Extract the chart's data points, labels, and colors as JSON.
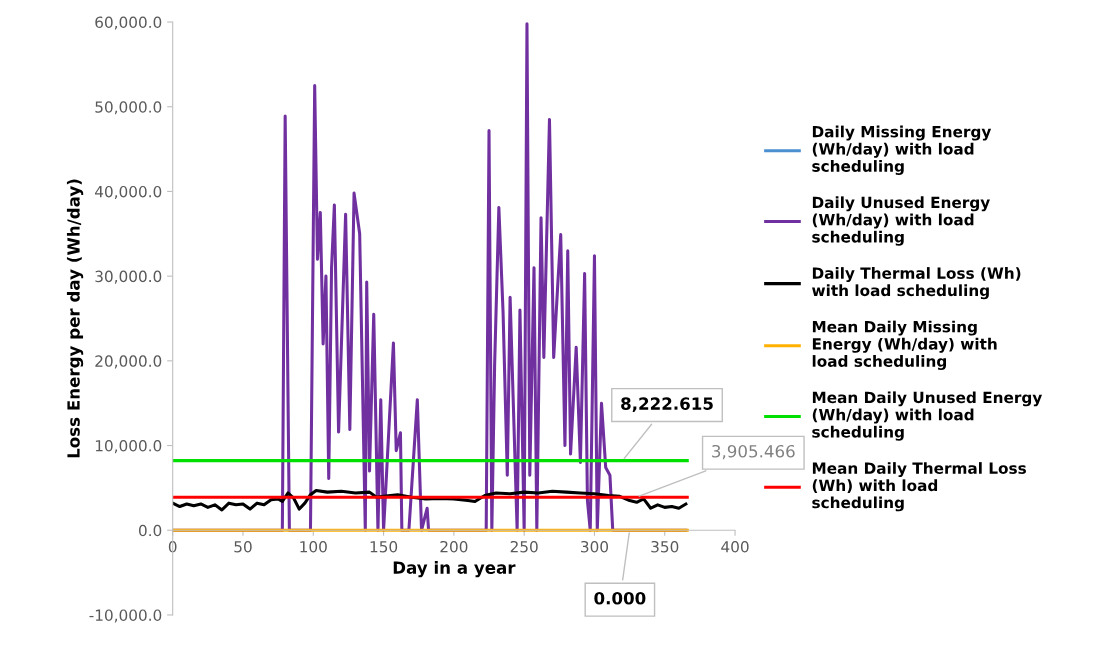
{
  "chart_data": {
    "type": "line",
    "xlabel": "Day in a year",
    "ylabel": "Loss Energy per day (Wh/day)",
    "xlim": [
      0,
      400
    ],
    "xticks": [
      0,
      50,
      100,
      150,
      200,
      250,
      300,
      350,
      400
    ],
    "ylim": [
      -10000,
      60000
    ],
    "yticks": [
      {
        "value": -10000,
        "label": "-10,000.0"
      },
      {
        "value": 0,
        "label": "0.0"
      },
      {
        "value": 10000,
        "label": "10,000.0"
      },
      {
        "value": 20000,
        "label": "20,000.0"
      },
      {
        "value": 30000,
        "label": "30,000.0"
      },
      {
        "value": 40000,
        "label": "40,000.0"
      },
      {
        "value": 50000,
        "label": "50,000.0"
      },
      {
        "value": 60000,
        "label": "60,000.0"
      }
    ],
    "grid": false,
    "legend": "right",
    "marker": "none",
    "line_style": "solid",
    "series": [
      {
        "name": "Daily Missing Energy (Wh/day) with load scheduling",
        "color": "#4a90d0"
      },
      {
        "name": "Daily Unused Energy (Wh/day) with load scheduling",
        "color": "#7030a0",
        "x": [
          0,
          78,
          80,
          83,
          98,
          101,
          103,
          105,
          107,
          109,
          111,
          113,
          115,
          118,
          123,
          126,
          129,
          133,
          137,
          138,
          140,
          143,
          146,
          148,
          150,
          157,
          159,
          162,
          163,
          168,
          174,
          177,
          181,
          182,
          223,
          225,
          227,
          229,
          232,
          235,
          238,
          240,
          245,
          247,
          250,
          252,
          254,
          257,
          259,
          262,
          264,
          268,
          271,
          274,
          276,
          279,
          281,
          283,
          287,
          290,
          293,
          295,
          297,
          300,
          302,
          305,
          308,
          311,
          313,
          365
        ],
        "values": [
          0,
          0,
          48900,
          0,
          0,
          52500,
          32000,
          37500,
          22000,
          30000,
          6100,
          31000,
          38400,
          11600,
          37300,
          11900,
          39800,
          35000,
          0,
          29300,
          7000,
          25500,
          0,
          15400,
          0,
          22100,
          9400,
          11500,
          0,
          0,
          15400,
          0,
          2600,
          0,
          0,
          47200,
          0,
          19600,
          38100,
          25700,
          6500,
          27500,
          0,
          26000,
          0,
          59800,
          6500,
          31000,
          0,
          36900,
          20400,
          48500,
          20400,
          29300,
          34900,
          10000,
          33000,
          9000,
          21600,
          8000,
          30300,
          3500,
          0,
          32400,
          0,
          15000,
          7400,
          6500,
          0,
          0
        ]
      },
      {
        "name": "Daily Thermal Loss (Wh) with load scheduling",
        "color": "#000000",
        "x": [
          0,
          5,
          10,
          15,
          20,
          25,
          30,
          35,
          40,
          45,
          50,
          55,
          60,
          65,
          70,
          75,
          78,
          82,
          86,
          90,
          94,
          98,
          102,
          110,
          120,
          130,
          140,
          145,
          150,
          160,
          170,
          180,
          190,
          200,
          210,
          215,
          222,
          230,
          240,
          250,
          260,
          270,
          280,
          290,
          300,
          310,
          318,
          325,
          330,
          335,
          340,
          345,
          350,
          355,
          360,
          365
        ],
        "values": [
          3200,
          2800,
          3100,
          2900,
          3100,
          2700,
          3000,
          2400,
          3200,
          3000,
          3100,
          2500,
          3200,
          3000,
          3600,
          3700,
          3400,
          4400,
          3800,
          2500,
          3200,
          4200,
          4700,
          4500,
          4600,
          4400,
          4500,
          3900,
          4000,
          4200,
          3900,
          3700,
          3750,
          3700,
          3500,
          3400,
          4100,
          4400,
          4300,
          4500,
          4400,
          4600,
          4500,
          4400,
          4300,
          4100,
          4000,
          3500,
          3300,
          3700,
          2600,
          3000,
          2700,
          2800,
          2600,
          3100
        ]
      },
      {
        "name": "Mean Daily Missing Energy (Wh/day) with load scheduling",
        "color": "#ffb000",
        "x": [
          0,
          366
        ],
        "values": [
          0,
          0
        ]
      },
      {
        "name": "Mean Daily Unused Energy (Wh/day) with load scheduling",
        "color": "#00e000",
        "x": [
          0,
          366
        ],
        "values": [
          8222.615,
          8222.615
        ]
      },
      {
        "name": "Mean Daily Thermal Loss (Wh) with load scheduling",
        "color": "#ff0000",
        "x": [
          0,
          366
        ],
        "values": [
          3905.466,
          3905.466
        ]
      }
    ],
    "annotations": [
      {
        "text": "8,222.615",
        "x": 320,
        "y": 8222.615
      },
      {
        "text": "3,905.466",
        "x": 330,
        "y": 3905.466
      },
      {
        "text": "0.000",
        "x": 325,
        "y": 0
      }
    ]
  }
}
